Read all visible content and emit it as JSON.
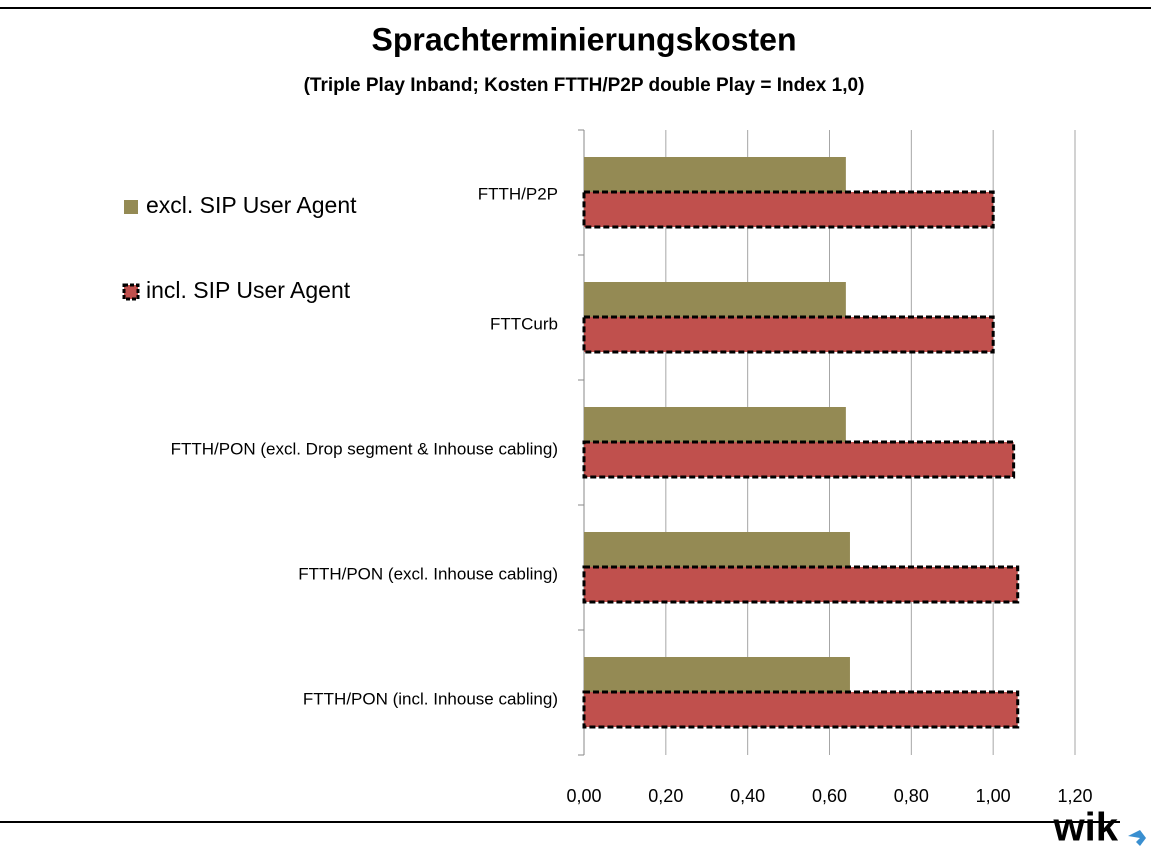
{
  "chart_data": {
    "type": "barh",
    "title": "Sprachterminierungskosten",
    "subtitle": "(Triple Play Inband; Kosten FTTH/P2P double Play = Index 1,0)",
    "categories": [
      "FTTH/P2P",
      "FTTCurb",
      "FTTH/PON (excl. Drop segment & Inhouse cabling)",
      "FTTH/PON (excl. Inhouse cabling)",
      "FTTH/PON (incl. Inhouse cabling)"
    ],
    "series": [
      {
        "name": "excl. SIP User Agent",
        "color": "#948a54",
        "values": [
          0.64,
          0.64,
          0.64,
          0.65,
          0.65
        ]
      },
      {
        "name": "incl. SIP User Agent",
        "color": "#c0504d",
        "values": [
          1.0,
          1.0,
          1.05,
          1.06,
          1.06
        ]
      }
    ],
    "xlim": [
      0,
      1.2
    ],
    "xticks": [
      {
        "value": 0,
        "label": "0,00"
      },
      {
        "value": 0.2,
        "label": "0,20"
      },
      {
        "value": 0.4,
        "label": "0,40"
      },
      {
        "value": 0.6,
        "label": "0,60"
      },
      {
        "value": 0.8,
        "label": "0,80"
      },
      {
        "value": 1.0,
        "label": "1,00"
      },
      {
        "value": 1.2,
        "label": "1,20"
      }
    ],
    "grid": true,
    "legend": "left",
    "logo": "wik"
  }
}
